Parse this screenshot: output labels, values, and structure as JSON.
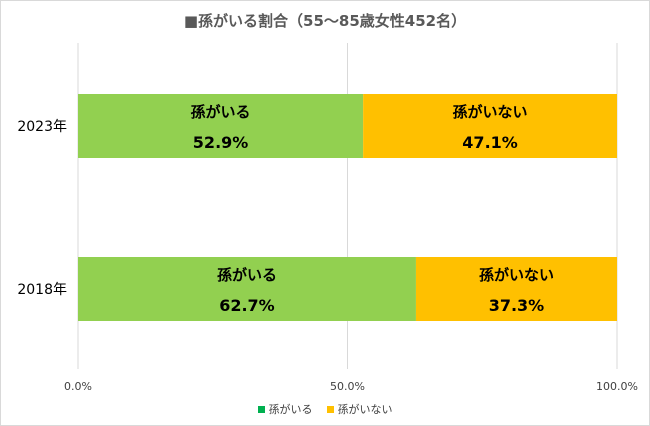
{
  "chart_data": {
    "type": "bar",
    "orientation": "horizontal",
    "stacked": true,
    "title": "■孫がいる割合（55～85歳女性452名）",
    "categories": [
      "2023年",
      "2018年"
    ],
    "series": [
      {
        "name": "孫がいる",
        "values": [
          52.9,
          62.7
        ],
        "labels": [
          "52.9%",
          "62.7%"
        ],
        "color": "#92d050"
      },
      {
        "name": "孫がいない",
        "values": [
          47.1,
          37.3
        ],
        "labels": [
          "47.1%",
          "37.3%"
        ],
        "color": "#ffc000"
      }
    ],
    "xlim": [
      0,
      100
    ],
    "xticks": [
      0,
      50,
      100
    ],
    "xtick_labels": [
      "0.0%",
      "50.0%",
      "100.0%"
    ],
    "grid": true,
    "legend_position": "bottom",
    "legend_colors": [
      "#00b050",
      "#ffc000"
    ]
  }
}
